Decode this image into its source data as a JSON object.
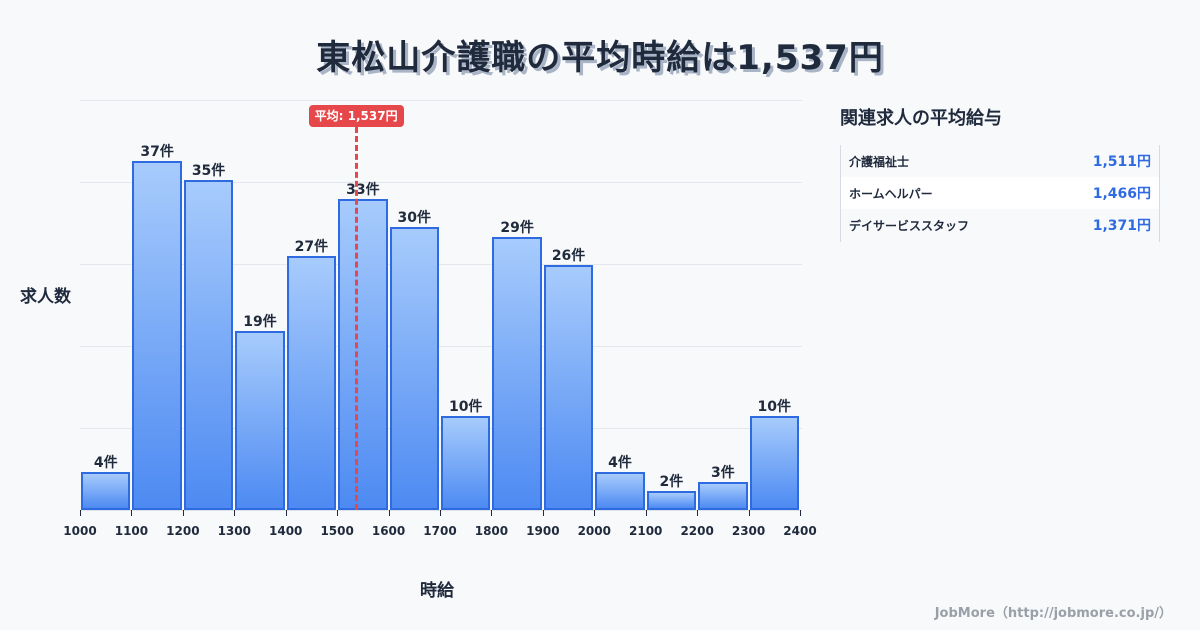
{
  "title": "東松山介護職の平均時給は1,537円",
  "chart_data": {
    "type": "bar",
    "title": "東松山介護職の平均時給は1,537円",
    "xlabel": "時給",
    "ylabel": "求人数",
    "bin_edges": [
      1000,
      1100,
      1200,
      1300,
      1400,
      1500,
      1600,
      1700,
      1800,
      1900,
      2000,
      2100,
      2200,
      2300,
      2400
    ],
    "categories": [
      "1000-1100",
      "1100-1200",
      "1200-1300",
      "1300-1400",
      "1400-1500",
      "1500-1600",
      "1600-1700",
      "1700-1800",
      "1800-1900",
      "1900-2000",
      "2000-2100",
      "2100-2200",
      "2200-2300",
      "2300-2400"
    ],
    "values": [
      4,
      37,
      35,
      19,
      27,
      33,
      30,
      10,
      29,
      26,
      4,
      2,
      3,
      10
    ],
    "value_labels": [
      "4件",
      "37件",
      "35件",
      "19件",
      "27件",
      "33件",
      "30件",
      "10件",
      "29件",
      "26件",
      "4件",
      "2件",
      "3件",
      "10件"
    ],
    "x_tick_labels": [
      "1000",
      "1100",
      "1200",
      "1300",
      "1400",
      "1500",
      "1600",
      "1700",
      "1800",
      "1900",
      "2000",
      "2100",
      "2200",
      "2300",
      "2400"
    ],
    "ylim": [
      0,
      43.5
    ],
    "grid": true,
    "annotations": [
      {
        "type": "vline",
        "x": 1537,
        "label": "平均: 1,537円",
        "color": "#e5474a"
      }
    ],
    "bar_color": "#4d8af2",
    "bar_edge_color": "#2f6be0"
  },
  "mean_label": "平均: 1,537円",
  "axes": {
    "ylabel": "求人数",
    "xlabel": "時給"
  },
  "related": {
    "title": "関連求人の平均給与",
    "rows": [
      {
        "name": "介護福祉士",
        "value": "1,511円"
      },
      {
        "name": "ホームヘルパー",
        "value": "1,466円"
      },
      {
        "name": "デイサービススタッフ",
        "value": "1,371円"
      }
    ]
  },
  "footer": "JobMore（http://jobmore.co.jp/）"
}
